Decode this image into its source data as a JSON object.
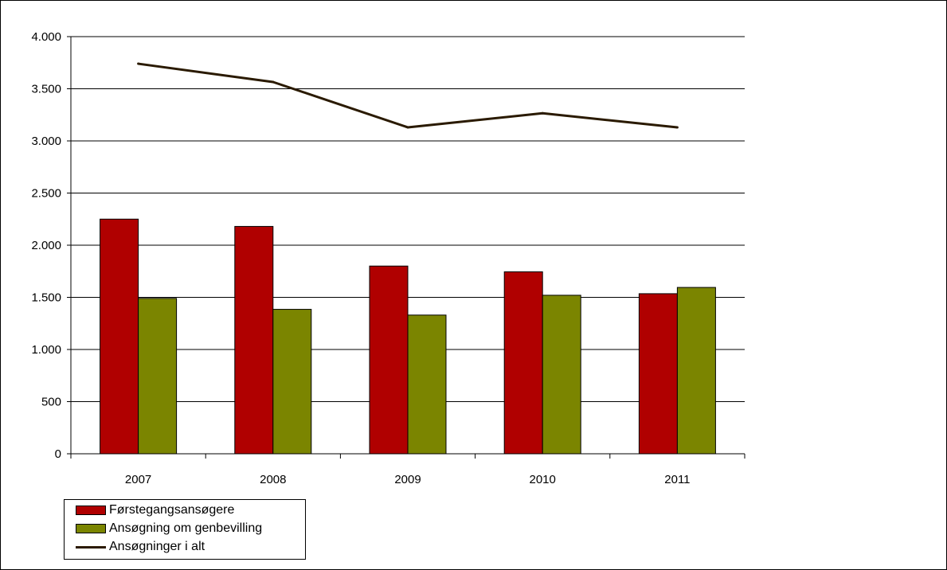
{
  "chart_data": {
    "type": "bar",
    "categories": [
      "2007",
      "2008",
      "2009",
      "2010",
      "2011"
    ],
    "series": [
      {
        "name": "Førstegangsansøgere",
        "type": "bar",
        "color": "#b00000",
        "values": [
          2250,
          2180,
          1800,
          1745,
          1535
        ]
      },
      {
        "name": "Ansøgning om genbevilling",
        "type": "bar",
        "color": "#7b8500",
        "values": [
          1490,
          1385,
          1330,
          1520,
          1595
        ]
      },
      {
        "name": "Ansøgninger i alt",
        "type": "line",
        "color": "#2a1a00",
        "values": [
          3740,
          3565,
          3130,
          3265,
          3130
        ]
      }
    ],
    "ylim": [
      0,
      4000
    ],
    "yticks": [
      0,
      500,
      1000,
      1500,
      2000,
      2500,
      3000,
      3500,
      4000
    ],
    "ytick_labels": [
      "0",
      "500",
      "1.000",
      "1.500",
      "2.000",
      "2.500",
      "3.000",
      "3.500",
      "4.000"
    ],
    "grid": true,
    "legend_position": "bottom-left"
  }
}
